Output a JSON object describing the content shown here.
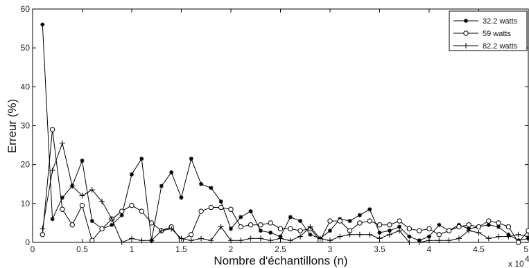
{
  "chart_data": {
    "type": "line",
    "xlabel": "Nombre d'échantillons (n)",
    "ylabel": "Erreur (%)",
    "x_multiplier_label": "x 10",
    "x_multiplier_exp": "4",
    "xlim": [
      0,
      5
    ],
    "ylim": [
      0,
      60
    ],
    "xticks": [
      "0",
      "0.5",
      "1",
      "1.5",
      "2",
      "2.5",
      "3",
      "3.5",
      "4",
      "4.5",
      "5"
    ],
    "yticks": [
      "0",
      "10",
      "20",
      "30",
      "40",
      "50",
      "60"
    ],
    "legend_position": "top-right",
    "grid": false,
    "x": [
      0.1,
      0.2,
      0.3,
      0.4,
      0.5,
      0.6,
      0.7,
      0.8,
      0.9,
      1.0,
      1.1,
      1.2,
      1.3,
      1.4,
      1.5,
      1.6,
      1.7,
      1.8,
      1.9,
      2.0,
      2.1,
      2.2,
      2.3,
      2.4,
      2.5,
      2.6,
      2.7,
      2.8,
      2.9,
      3.0,
      3.1,
      3.2,
      3.3,
      3.4,
      3.5,
      3.6,
      3.7,
      3.8,
      3.9,
      4.0,
      4.1,
      4.2,
      4.3,
      4.4,
      4.5,
      4.6,
      4.7,
      4.8,
      4.9,
      5.0
    ],
    "series": [
      {
        "name": "32.2 watts",
        "marker": "star",
        "values": [
          56,
          6,
          11.5,
          14.5,
          21,
          5.5,
          3.5,
          4.5,
          7,
          17.5,
          21.5,
          0.5,
          14.5,
          18,
          11.5,
          21.5,
          15,
          14,
          10.5,
          3.5,
          6.5,
          8,
          3,
          2.5,
          1.5,
          6.5,
          5.5,
          2,
          1,
          3,
          6,
          5.5,
          7,
          8.5,
          2.5,
          3,
          4,
          1.5,
          0.5,
          1.5,
          4.5,
          3,
          4.5,
          3.5,
          4,
          4.5,
          4,
          2,
          0.5,
          1
        ]
      },
      {
        "name": "59 watts",
        "marker": "circle",
        "values": [
          2,
          29,
          8.5,
          4.5,
          9.5,
          0.5,
          3.5,
          6,
          8,
          9.5,
          8,
          5,
          3,
          4,
          0.5,
          2,
          8,
          9,
          9,
          8.5,
          4,
          4.5,
          4.5,
          5,
          3.5,
          3.5,
          3,
          3.5,
          0.5,
          5.5,
          5.5,
          3,
          5,
          5.5,
          4.5,
          4.5,
          5.5,
          3.5,
          3,
          3.5,
          2,
          3,
          4,
          4.5,
          4,
          5.5,
          5,
          4,
          0,
          3
        ]
      },
      {
        "name": "82.2 watts",
        "marker": "plus",
        "values": [
          3.5,
          18.5,
          25.5,
          14.5,
          12,
          13.5,
          10.5,
          6,
          0,
          1,
          0.5,
          0.5,
          3,
          3.5,
          1,
          0.5,
          1,
          0.5,
          4,
          0.5,
          0.5,
          1,
          1,
          0.5,
          1,
          0.5,
          1.5,
          4,
          1,
          0.5,
          1.5,
          2,
          2,
          2,
          1,
          2,
          3,
          0,
          0,
          0.5,
          0.5,
          0.5,
          1,
          3,
          2.5,
          1,
          1.5,
          1.5,
          2,
          1.5
        ]
      }
    ]
  }
}
